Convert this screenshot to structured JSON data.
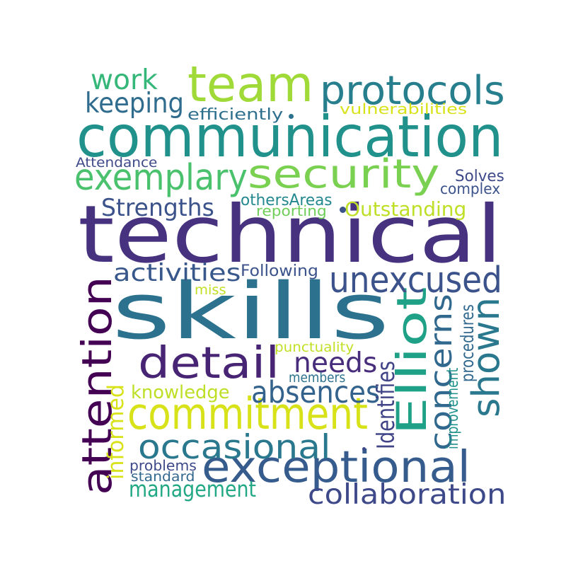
{
  "words": [
    {
      "text": "technical",
      "color": "#46327e"
    },
    {
      "text": "communication",
      "color": "#21918c"
    },
    {
      "text": "skills",
      "color": "#2c728e"
    },
    {
      "text": "team",
      "color": "#a0da39"
    },
    {
      "text": "security",
      "color": "#7ad151"
    },
    {
      "text": "protocols",
      "color": "#277f8e"
    },
    {
      "text": "exemplary",
      "color": "#4ac16d"
    },
    {
      "text": "commitment",
      "color": "#d8e219"
    },
    {
      "text": "exceptional",
      "color": "#365c8d"
    },
    {
      "text": "attention",
      "color": "#440154"
    },
    {
      "text": "Elliot",
      "color": "#1fa187"
    },
    {
      "text": "detail",
      "color": "#482475"
    },
    {
      "text": "unexcused",
      "color": "#3b528b"
    },
    {
      "text": "shown",
      "color": "#2a788e"
    },
    {
      "text": "occasional",
      "color": "#2a788e"
    },
    {
      "text": "concerns",
      "color": "#31688e"
    },
    {
      "text": "absences",
      "color": "#33638d"
    },
    {
      "text": "collaboration",
      "color": "#3e4989"
    },
    {
      "text": "keeping",
      "color": "#2f6c8e"
    },
    {
      "text": "work",
      "color": "#35b779"
    },
    {
      "text": "needs",
      "color": "#472d7b"
    },
    {
      "text": "activities",
      "color": "#38588c"
    },
    {
      "text": "Strengths",
      "color": "#3b528b"
    },
    {
      "text": "Outstanding",
      "color": "#bddf26"
    },
    {
      "text": "management",
      "color": "#22a884"
    },
    {
      "text": "knowledge",
      "color": "#bddf26"
    },
    {
      "text": "Identifies",
      "color": "#414487"
    },
    {
      "text": "informed",
      "color": "#d8e219"
    },
    {
      "text": "efficiently",
      "color": "#2d708e"
    },
    {
      "text": "vulnerabilities",
      "color": "#d8e219"
    },
    {
      "text": "Solves",
      "color": "#3e4989"
    },
    {
      "text": "complex",
      "color": "#3b528b"
    },
    {
      "text": "Attendance",
      "color": "#3e4989"
    },
    {
      "text": "othersAreas",
      "color": "#23888e"
    },
    {
      "text": "reporting",
      "color": "#6ece58"
    },
    {
      "text": "Following",
      "color": "#3b528b"
    },
    {
      "text": "miss",
      "color": "#c2df23"
    },
    {
      "text": "procedures",
      "color": "#31688e"
    },
    {
      "text": "improvement",
      "color": "#21918c"
    },
    {
      "text": "punctuality",
      "color": "#c2df23"
    },
    {
      "text": "members",
      "color": "#2c728e"
    },
    {
      "text": "problems",
      "color": "#3e4989"
    },
    {
      "text": "standard",
      "color": "#31688e"
    }
  ],
  "dots": [
    {
      "color": "#3b528b"
    },
    {
      "color": "#2c728e"
    },
    {
      "color": "#3e4989"
    }
  ]
}
